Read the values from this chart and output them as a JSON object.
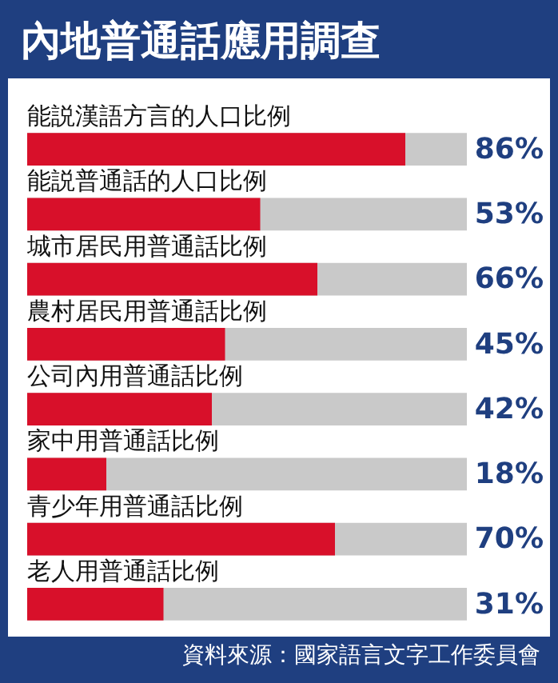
{
  "chart_data": {
    "type": "bar",
    "orientation": "horizontal",
    "title": "內地普通話應用調查",
    "categories": [
      "能説漢語方言的人口比例",
      "能説普通話的人口比例",
      "城市居民用普通話比例",
      "農村居民用普通話比例",
      "公司內用普通話比例",
      "家中用普通話比例",
      "青少年用普通話比例",
      "老人用普通話比例"
    ],
    "values": [
      86,
      53,
      66,
      45,
      42,
      18,
      70,
      31
    ],
    "value_labels": [
      "86%",
      "53%",
      "66%",
      "45%",
      "42%",
      "18%",
      "70%",
      "31%"
    ],
    "color": "#d8102a",
    "xlim": [
      0,
      100
    ],
    "tick_labels": "y",
    "annotations": [
      "資料來源：國家語言文字工作委員會"
    ]
  }
}
